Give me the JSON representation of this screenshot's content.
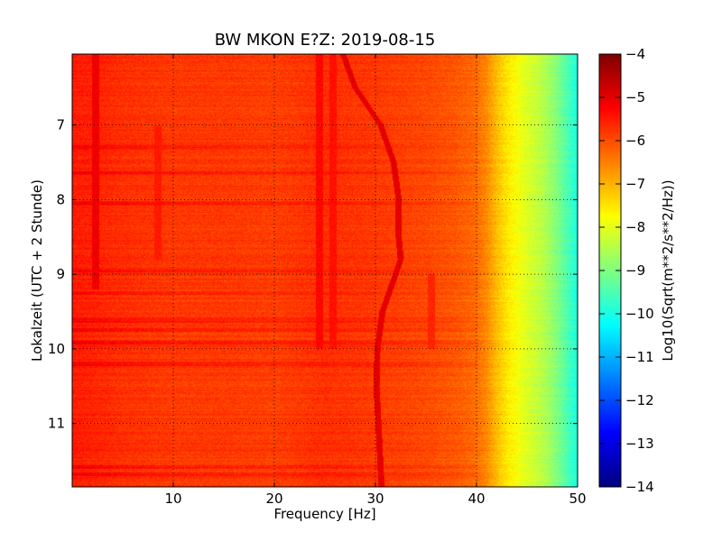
{
  "chart_data": {
    "type": "heatmap",
    "title": "BW MKON E?Z: 2019-08-15",
    "xlabel": "Frequency [Hz]",
    "ylabel": "Lokalzeit (UTC + 2 Stunde)",
    "xlim": [
      0,
      50
    ],
    "ylim": [
      6.05,
      11.85
    ],
    "y_inverted": true,
    "x_ticks": [
      10,
      20,
      30,
      40,
      50
    ],
    "x_tick_labels": [
      "10",
      "20",
      "30",
      "40",
      "50"
    ],
    "y_ticks": [
      7,
      8,
      9,
      10,
      11
    ],
    "y_tick_labels": [
      "7",
      "8",
      "9",
      "10",
      "11"
    ],
    "grid": true,
    "colormap": "jet",
    "colorbar": {
      "label": "Log10(Sqrt(m**2/s**2/Hz))",
      "range": [
        -14,
        -4
      ],
      "ticks": [
        -4,
        -5,
        -6,
        -7,
        -8,
        -9,
        -10,
        -11,
        -12,
        -13,
        -14
      ],
      "tick_labels": [
        "−4",
        "−5",
        "−6",
        "−7",
        "−8",
        "−9",
        "−10",
        "−11",
        "−12",
        "−13",
        "−14"
      ]
    },
    "frequency_profile": {
      "frequencies": [
        0,
        5,
        10,
        15,
        20,
        25,
        30,
        35,
        38,
        40,
        41,
        42,
        43,
        44,
        45,
        46,
        47,
        48,
        49,
        50
      ],
      "values": [
        -5.5,
        -5.7,
        -5.8,
        -5.8,
        -5.85,
        -5.7,
        -5.8,
        -5.95,
        -6.1,
        -6.3,
        -6.6,
        -7.1,
        -7.5,
        -7.8,
        -8.1,
        -8.3,
        -8.6,
        -9.0,
        -9.5,
        -10.0
      ]
    },
    "spectral_lines": [
      {
        "frequency": 2.3,
        "level": -5.1,
        "time_range": [
          6.05,
          9.2
        ]
      },
      {
        "frequency": 24.5,
        "level": -5.3,
        "time_range": [
          6.05,
          10.0
        ]
      },
      {
        "frequency": 25.8,
        "level": -5.4,
        "time_range": [
          6.05,
          10.0
        ]
      },
      {
        "frequency": 8.5,
        "level": -5.5,
        "time_range": [
          7.0,
          8.8
        ]
      },
      {
        "frequency": 35.5,
        "level": -5.6,
        "time_range": [
          9.0,
          10.0
        ]
      }
    ],
    "drifting_line": {
      "level": -5.0,
      "points": [
        {
          "time": 6.05,
          "frequency": 26.8
        },
        {
          "time": 6.5,
          "frequency": 28.0
        },
        {
          "time": 7.0,
          "frequency": 30.5
        },
        {
          "time": 7.5,
          "frequency": 31.8
        },
        {
          "time": 8.0,
          "frequency": 32.3
        },
        {
          "time": 8.5,
          "frequency": 32.3
        },
        {
          "time": 8.8,
          "frequency": 32.5
        },
        {
          "time": 9.0,
          "frequency": 32.0
        },
        {
          "time": 9.5,
          "frequency": 30.7
        },
        {
          "time": 10.0,
          "frequency": 30.2
        },
        {
          "time": 10.5,
          "frequency": 30.1
        },
        {
          "time": 11.0,
          "frequency": 30.3
        },
        {
          "time": 11.85,
          "frequency": 30.6
        }
      ]
    },
    "horizontal_bands": [
      {
        "time": 7.3,
        "level": -5.3
      },
      {
        "time": 7.65,
        "level": -5.2
      },
      {
        "time": 8.05,
        "level": -5.5
      },
      {
        "time": 8.95,
        "level": -5.3
      },
      {
        "time": 9.25,
        "level": -5.4
      },
      {
        "time": 9.62,
        "level": -5.1
      },
      {
        "time": 9.75,
        "level": -5.2
      },
      {
        "time": 9.92,
        "level": -5.2
      },
      {
        "time": 10.2,
        "level": -5.5
      },
      {
        "time": 11.58,
        "level": -5.2
      },
      {
        "time": 11.68,
        "level": -5.5
      }
    ]
  }
}
